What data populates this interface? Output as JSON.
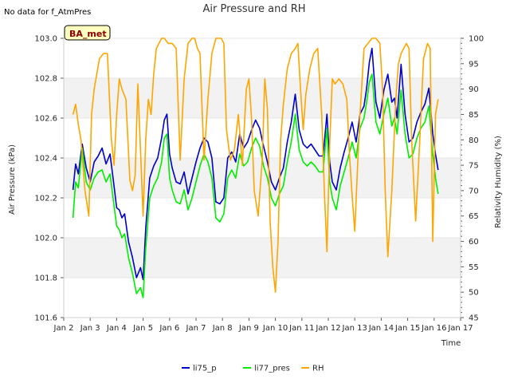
{
  "colors": {
    "li75_p": "#0000cc",
    "li77_pres": "#00ee00",
    "RH": "#ffa500",
    "band": "#f2f2f2",
    "badge_fill": "#ffffc0",
    "badge_text": "#8b0000"
  },
  "chart_data": {
    "type": "line",
    "title": "Air Pressure and RH",
    "note": "No data for f_AtmPres",
    "badge": "BA_met",
    "xlabel": "Time",
    "ylabel_left": "Air Pressure (kPa)",
    "ylabel_right": "Relativity Humidity (%)",
    "xlim": [
      2.0,
      17.0
    ],
    "ylim_left": [
      101.6,
      103.0
    ],
    "ylim_right": [
      45,
      100
    ],
    "x_ticks": [
      2,
      3,
      4,
      5,
      6,
      7,
      8,
      9,
      10,
      11,
      12,
      13,
      14,
      15,
      16,
      17
    ],
    "x_tick_labels": [
      "Jan 2",
      "Jan 3",
      "Jan 4",
      "Jan 5",
      "Jan 6",
      "Jan 7",
      "Jan 8",
      "Jan 9",
      "Jan 10",
      "Jan 11",
      "Jan 12",
      "Jan 13",
      "Jan 14",
      "Jan 15",
      "Jan 16",
      "Jan 17"
    ],
    "y_left_ticks": [
      "101.6",
      "101.8",
      "102.0",
      "102.2",
      "102.4",
      "102.6",
      "102.8",
      "103.0"
    ],
    "y_right_ticks": [
      "45",
      "50",
      "55",
      "60",
      "65",
      "70",
      "75",
      "80",
      "85",
      "90",
      "95",
      "100"
    ],
    "legend": [
      "li75_p",
      "li77_pres",
      "RH"
    ],
    "series": [
      {
        "name": "li75_p",
        "axis": "left",
        "x": [
          2.35,
          2.45,
          2.55,
          2.7,
          2.85,
          3.0,
          3.15,
          3.3,
          3.45,
          3.6,
          3.75,
          3.9,
          4.0,
          4.1,
          4.2,
          4.3,
          4.45,
          4.6,
          4.75,
          4.9,
          5.0,
          5.1,
          5.25,
          5.4,
          5.55,
          5.7,
          5.8,
          5.9,
          6.0,
          6.1,
          6.25,
          6.4,
          6.55,
          6.7,
          6.85,
          7.0,
          7.15,
          7.3,
          7.45,
          7.6,
          7.75,
          7.9,
          8.05,
          8.2,
          8.35,
          8.5,
          8.65,
          8.8,
          8.95,
          9.1,
          9.25,
          9.4,
          9.55,
          9.7,
          9.85,
          10.0,
          10.15,
          10.3,
          10.45,
          10.6,
          10.75,
          10.9,
          11.05,
          11.2,
          11.35,
          11.5,
          11.65,
          11.8,
          11.95,
          12.05,
          12.15,
          12.3,
          12.45,
          12.6,
          12.75,
          12.9,
          13.05,
          13.2,
          13.35,
          13.45,
          13.55,
          13.65,
          13.8,
          13.95,
          14.1,
          14.25,
          14.4,
          14.5,
          14.6,
          14.75,
          14.9,
          15.05,
          15.2,
          15.35,
          15.5,
          15.65,
          15.8,
          15.95,
          16.05,
          16.15
        ],
        "y": [
          102.24,
          102.37,
          102.32,
          102.47,
          102.35,
          102.28,
          102.38,
          102.41,
          102.45,
          102.37,
          102.42,
          102.26,
          102.15,
          102.14,
          102.1,
          102.12,
          101.98,
          101.9,
          101.8,
          101.85,
          101.79,
          102.05,
          102.3,
          102.36,
          102.4,
          102.5,
          102.59,
          102.62,
          102.42,
          102.35,
          102.28,
          102.27,
          102.33,
          102.22,
          102.3,
          102.38,
          102.45,
          102.5,
          102.48,
          102.4,
          102.18,
          102.17,
          102.2,
          102.4,
          102.43,
          102.38,
          102.52,
          102.45,
          102.48,
          102.54,
          102.59,
          102.55,
          102.46,
          102.38,
          102.28,
          102.24,
          102.3,
          102.35,
          102.48,
          102.58,
          102.72,
          102.54,
          102.47,
          102.45,
          102.47,
          102.44,
          102.41,
          102.41,
          102.62,
          102.38,
          102.28,
          102.24,
          102.35,
          102.43,
          102.5,
          102.58,
          102.48,
          102.62,
          102.66,
          102.75,
          102.88,
          102.95,
          102.68,
          102.6,
          102.74,
          102.82,
          102.68,
          102.7,
          102.6,
          102.87,
          102.62,
          102.48,
          102.5,
          102.58,
          102.63,
          102.67,
          102.75,
          102.52,
          102.42,
          102.34
        ]
      },
      {
        "name": "li77_pres",
        "axis": "left",
        "x": [
          2.35,
          2.45,
          2.55,
          2.7,
          2.85,
          3.0,
          3.15,
          3.3,
          3.45,
          3.6,
          3.75,
          3.9,
          4.0,
          4.1,
          4.2,
          4.3,
          4.45,
          4.6,
          4.75,
          4.9,
          5.0,
          5.1,
          5.25,
          5.4,
          5.55,
          5.7,
          5.8,
          5.9,
          6.0,
          6.1,
          6.25,
          6.4,
          6.55,
          6.7,
          6.85,
          7.0,
          7.15,
          7.3,
          7.45,
          7.6,
          7.75,
          7.9,
          8.05,
          8.2,
          8.35,
          8.5,
          8.65,
          8.8,
          8.95,
          9.1,
          9.25,
          9.4,
          9.55,
          9.7,
          9.85,
          10.0,
          10.15,
          10.3,
          10.45,
          10.6,
          10.75,
          10.9,
          11.05,
          11.2,
          11.35,
          11.5,
          11.65,
          11.8,
          11.95,
          12.05,
          12.15,
          12.3,
          12.45,
          12.6,
          12.75,
          12.9,
          13.05,
          13.2,
          13.35,
          13.45,
          13.55,
          13.65,
          13.8,
          13.95,
          14.1,
          14.25,
          14.4,
          14.5,
          14.6,
          14.75,
          14.9,
          15.05,
          15.2,
          15.35,
          15.5,
          15.65,
          15.8,
          15.95,
          16.05,
          16.15
        ],
        "y": [
          102.1,
          102.28,
          102.25,
          102.45,
          102.28,
          102.24,
          102.3,
          102.33,
          102.34,
          102.28,
          102.32,
          102.16,
          102.06,
          102.04,
          102.0,
          102.02,
          101.9,
          101.82,
          101.72,
          101.75,
          101.7,
          101.95,
          102.2,
          102.26,
          102.3,
          102.38,
          102.5,
          102.52,
          102.3,
          102.24,
          102.18,
          102.17,
          102.24,
          102.14,
          102.2,
          102.28,
          102.36,
          102.42,
          102.38,
          102.3,
          102.1,
          102.08,
          102.12,
          102.3,
          102.34,
          102.3,
          102.42,
          102.36,
          102.38,
          102.45,
          102.5,
          102.46,
          102.36,
          102.3,
          102.2,
          102.16,
          102.22,
          102.26,
          102.38,
          102.48,
          102.62,
          102.44,
          102.38,
          102.36,
          102.38,
          102.36,
          102.33,
          102.33,
          102.55,
          102.28,
          102.2,
          102.14,
          102.26,
          102.33,
          102.4,
          102.48,
          102.4,
          102.55,
          102.6,
          102.68,
          102.78,
          102.82,
          102.58,
          102.52,
          102.62,
          102.7,
          102.56,
          102.6,
          102.52,
          102.74,
          102.52,
          102.4,
          102.42,
          102.5,
          102.55,
          102.58,
          102.66,
          102.42,
          102.3,
          102.22
        ]
      },
      {
        "name": "RH",
        "axis": "right",
        "x": [
          2.35,
          2.45,
          2.55,
          2.65,
          2.8,
          2.95,
          3.05,
          3.15,
          3.25,
          3.35,
          3.5,
          3.65,
          3.8,
          3.9,
          4.0,
          4.1,
          4.2,
          4.35,
          4.5,
          4.6,
          4.7,
          4.8,
          4.9,
          5.0,
          5.1,
          5.2,
          5.3,
          5.4,
          5.5,
          5.6,
          5.7,
          5.8,
          5.95,
          6.1,
          6.25,
          6.4,
          6.55,
          6.7,
          6.85,
          6.95,
          7.05,
          7.15,
          7.3,
          7.45,
          7.6,
          7.75,
          7.85,
          7.95,
          8.05,
          8.15,
          8.3,
          8.45,
          8.6,
          8.75,
          8.9,
          9.0,
          9.1,
          9.2,
          9.35,
          9.5,
          9.6,
          9.7,
          9.8,
          9.9,
          10.0,
          10.1,
          10.2,
          10.3,
          10.45,
          10.6,
          10.75,
          10.85,
          10.95,
          11.05,
          11.15,
          11.3,
          11.45,
          11.6,
          11.75,
          11.85,
          11.95,
          12.05,
          12.15,
          12.25,
          12.4,
          12.55,
          12.7,
          12.8,
          12.9,
          13.0,
          13.1,
          13.2,
          13.35,
          13.5,
          13.65,
          13.8,
          13.95,
          14.05,
          14.15,
          14.25,
          14.4,
          14.55,
          14.65,
          14.75,
          14.85,
          14.95,
          15.05,
          15.15,
          15.3,
          15.45,
          15.6,
          15.75,
          15.85,
          15.95,
          16.05,
          16.15
        ],
        "y": [
          85,
          87,
          83,
          80,
          70,
          65,
          85,
          90,
          93,
          96,
          97,
          97,
          80,
          75,
          85,
          92,
          90,
          88,
          72,
          70,
          73,
          91,
          78,
          65,
          80,
          88,
          85,
          93,
          98,
          99,
          100,
          100,
          99,
          99,
          98,
          76,
          92,
          99,
          100,
          100,
          98,
          97,
          76,
          88,
          97,
          100,
          100,
          100,
          99,
          82,
          76,
          78,
          85,
          75,
          90,
          92,
          84,
          70,
          65,
          76,
          92,
          86,
          64,
          55,
          50,
          60,
          80,
          87,
          94,
          97,
          98,
          99,
          90,
          82,
          89,
          94,
          97,
          98,
          85,
          70,
          58,
          79,
          92,
          91,
          92,
          91,
          88,
          77,
          69,
          62,
          74,
          85,
          98,
          99,
          100,
          100,
          99,
          90,
          70,
          57,
          70,
          88,
          95,
          97,
          98,
          99,
          98,
          80,
          64,
          79,
          96,
          99,
          98,
          60,
          85,
          88
        ]
      }
    ]
  }
}
